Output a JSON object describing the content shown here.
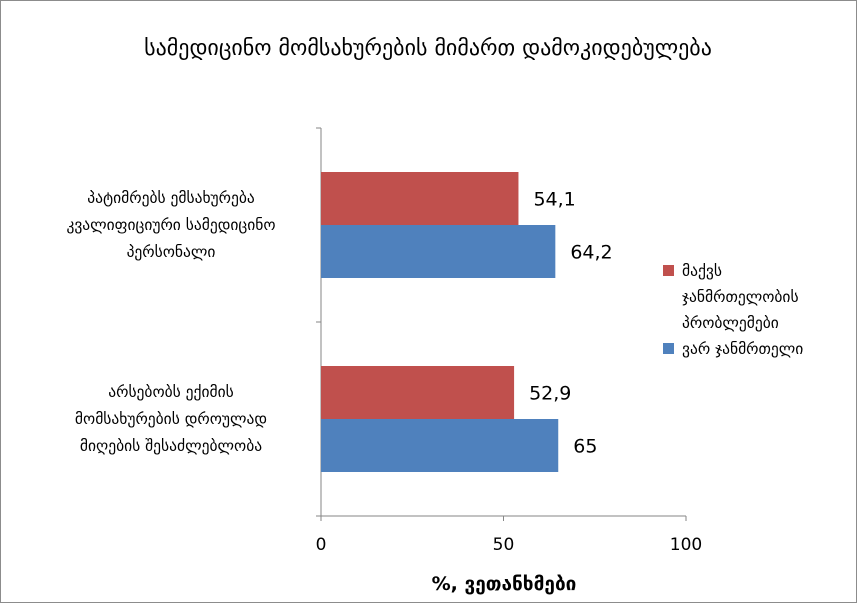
{
  "chart_data": {
    "type": "bar",
    "orientation": "horizontal",
    "title": "სამედიცინო მომსახურების მიმართ დამოკიდებულება",
    "xlabel": "%, ვეთანხმები",
    "ylabel": "",
    "xlim": [
      0,
      100
    ],
    "x_ticks": [
      "0",
      "50",
      "100"
    ],
    "grid": false,
    "legend_position": "right",
    "categories": [
      [
        "პატიმრებს ემსახურება",
        "კვალიფიციური სამედიცინო",
        "პერსონალი"
      ],
      [
        "არსებობს ექიმის",
        "მომსახურების დროულად",
        "მიღების შესაძლებლობა"
      ]
    ],
    "series": [
      {
        "name_lines": [
          "მაქვს",
          "ჯანმრთელობის",
          "პრობლემები"
        ],
        "color": "#c0504d",
        "values": [
          54.1,
          52.9
        ],
        "labels": [
          "54,1",
          "52,9"
        ]
      },
      {
        "name_lines": [
          "ვარ ჯანმრთელი"
        ],
        "color": "#4f81bd",
        "values": [
          64.2,
          65
        ],
        "labels": [
          "64,2",
          "65"
        ]
      }
    ]
  }
}
